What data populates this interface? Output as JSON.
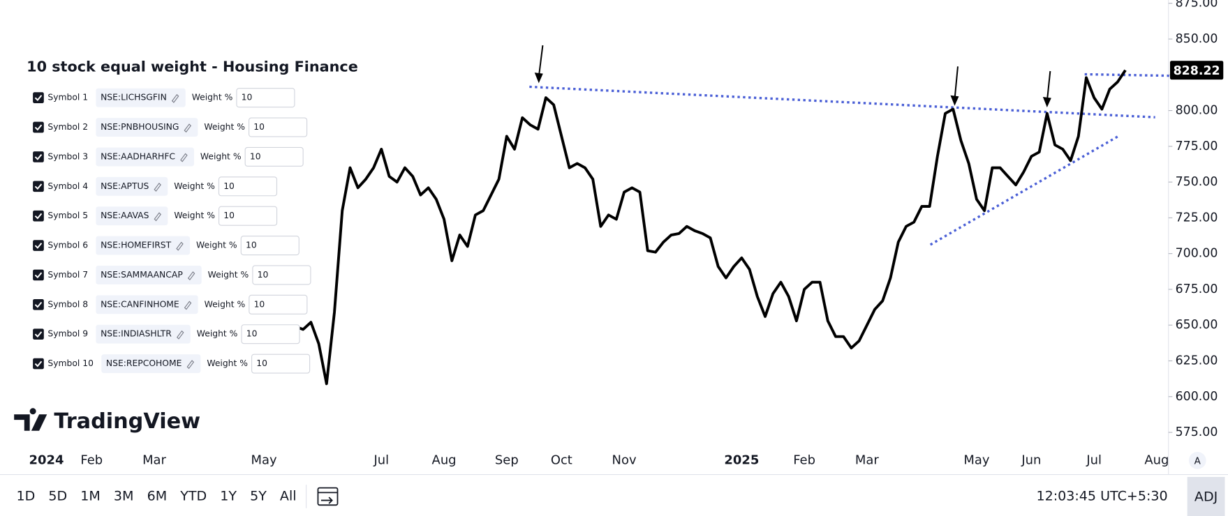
{
  "chart_data": {
    "type": "line",
    "categories": [
      "2024",
      null,
      null,
      null,
      null,
      null,
      null,
      null,
      "Feb",
      null,
      null,
      null,
      null,
      null,
      null,
      null,
      "Mar",
      null,
      null,
      null,
      null,
      null,
      null,
      null,
      null,
      null,
      null,
      null,
      null,
      null,
      "May",
      null,
      null,
      null,
      null,
      null,
      null,
      null,
      null,
      null,
      null,
      null,
      null,
      null,
      null,
      "Jul",
      null,
      null,
      null,
      null,
      null,
      null,
      null,
      "Aug",
      null,
      null,
      null,
      null,
      null,
      null,
      null,
      "Sep",
      null,
      null,
      null,
      null,
      null,
      null,
      "Oct",
      null,
      null,
      null,
      null,
      null,
      null,
      null,
      "Nov",
      null,
      null,
      null,
      null,
      null,
      null,
      null,
      null,
      null,
      null,
      null,
      null,
      null,
      null,
      "2025",
      null,
      null,
      null,
      null,
      null,
      null,
      null,
      "Feb",
      null,
      null,
      null,
      null,
      null,
      null,
      null,
      "Mar",
      null,
      null,
      null,
      null,
      null,
      null,
      null,
      null,
      null,
      null,
      null,
      null,
      null,
      "May",
      null,
      null,
      null,
      null,
      null,
      null,
      "Jun",
      null,
      null,
      null,
      null,
      null,
      null,
      null,
      "Jul",
      null,
      null,
      null,
      null,
      null,
      null,
      null,
      "Aug"
    ],
    "series": [
      {
        "color": "#000000",
        "values": [
          null,
          null,
          null,
          null,
          null,
          null,
          null,
          null,
          null,
          null,
          null,
          null,
          null,
          null,
          null,
          null,
          null,
          null,
          null,
          null,
          null,
          null,
          null,
          null,
          null,
          null,
          null,
          null,
          null,
          null,
          null,
          null,
          null,
          642,
          649,
          647,
          652,
          637,
          609,
          659,
          730,
          760,
          746,
          752,
          760,
          773,
          754,
          750,
          760,
          754,
          741,
          746,
          738,
          724,
          695,
          713,
          705,
          727,
          730,
          741,
          752,
          782,
          773,
          795,
          790,
          787,
          809,
          804,
          782,
          760,
          763,
          760,
          752,
          719,
          727,
          724,
          743,
          746,
          743,
          702,
          701,
          708,
          713,
          714,
          719,
          716,
          714,
          711,
          691,
          683,
          691,
          697,
          689,
          670,
          656,
          672,
          680,
          670,
          653,
          675,
          680,
          680,
          653,
          642,
          642,
          634,
          639,
          650,
          661,
          667,
          683,
          708,
          719,
          722,
          733,
          733,
          768,
          798,
          801,
          779,
          763,
          738,
          730,
          760,
          760,
          754,
          748,
          757,
          768,
          771,
          798,
          776,
          773,
          765,
          782,
          823,
          809,
          801,
          815,
          820,
          828.22,
          null,
          null,
          null,
          null
        ]
      }
    ],
    "ylim": [
      563,
      877.3
    ],
    "yticks": [
      {
        "value": 575,
        "label": "575.00"
      },
      {
        "value": 600,
        "label": "600.00"
      },
      {
        "value": 625,
        "label": "625.00"
      },
      {
        "value": 650,
        "label": "650.00"
      },
      {
        "value": 675,
        "label": "675.00"
      },
      {
        "value": 700,
        "label": "700.00"
      },
      {
        "value": 725,
        "label": "725.00"
      },
      {
        "value": 750,
        "label": "750.00"
      },
      {
        "value": 775,
        "label": "775.00"
      },
      {
        "value": 800,
        "label": "800.00"
      },
      {
        "value": 825,
        "label": "825.00"
      },
      {
        "value": 850,
        "label": "850.00"
      },
      {
        "value": 875,
        "label": "875.00"
      }
    ],
    "grid": false
  },
  "panel": {
    "title": "10 stock equal weight - Housing Finance",
    "rows": [
      {
        "label": "Symbol 1",
        "symbol": "NSE:LICHSGFIN",
        "weight_label": "Weight %",
        "weight": 10
      },
      {
        "label": "Symbol 2",
        "symbol": "NSE:PNBHOUSING",
        "weight_label": "Weight %",
        "weight": 10
      },
      {
        "label": "Symbol 3",
        "symbol": "NSE:AADHARHFC",
        "weight_label": "Weight %",
        "weight": 10
      },
      {
        "label": "Symbol 4",
        "symbol": "NSE:APTUS",
        "weight_label": "Weight %",
        "weight": 10
      },
      {
        "label": "Symbol 5",
        "symbol": "NSE:AAVAS",
        "weight_label": "Weight %",
        "weight": 10
      },
      {
        "label": "Symbol 6",
        "symbol": "NSE:HOMEFIRST",
        "weight_label": "Weight %",
        "weight": 10
      },
      {
        "label": "Symbol 7",
        "symbol": "NSE:SAMMAANCAP",
        "weight_label": "Weight %",
        "weight": 10
      },
      {
        "label": "Symbol 8",
        "symbol": "NSE:CANFINHOME",
        "weight_label": "Weight %",
        "weight": 10
      },
      {
        "label": "Symbol 9",
        "symbol": "NSE:INDIASHLTR",
        "weight_label": "Weight %",
        "weight": 10
      },
      {
        "label": "Symbol 10",
        "symbol": "NSE:REPCOHOME",
        "weight_label": "Weight %",
        "weight": 10
      }
    ]
  },
  "logo": "TradingView",
  "toolbar": {
    "ranges": [
      "1D",
      "5D",
      "1M",
      "3M",
      "6M",
      "YTD",
      "1Y",
      "5Y",
      "All"
    ],
    "time": "12:03:45 UTC+5:30",
    "adj": "ADJ",
    "auto": "A"
  }
}
